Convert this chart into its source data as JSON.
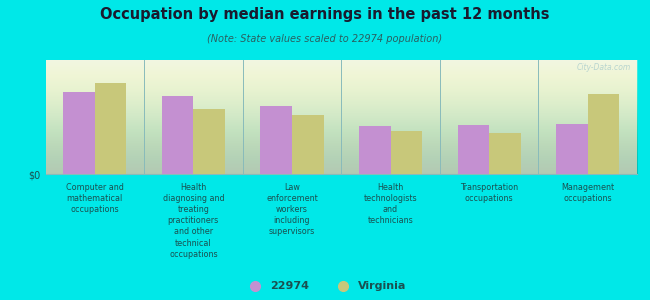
{
  "title": "Occupation by median earnings in the past 12 months",
  "subtitle": "(Note: State values scaled to 22974 population)",
  "background_color": "#00e8e8",
  "plot_bg_top": "#f0f4e0",
  "plot_bg_bottom": "#d8f0d8",
  "categories": [
    "Computer and\nmathematical\noccupations",
    "Health\ndiagnosing and\ntreating\npractitioners\nand other\ntechnical\noccupations",
    "Law\nenforcement\nworkers\nincluding\nsupervisors",
    "Health\ntechnologists\nand\ntechnicians",
    "Transportation\noccupations",
    "Management\noccupations"
  ],
  "values_22974": [
    72,
    68,
    60,
    42,
    43,
    44
  ],
  "values_virginia": [
    80,
    57,
    52,
    38,
    36,
    70
  ],
  "color_22974": "#c490d1",
  "color_virginia": "#c8c87a",
  "ylabel": "$0",
  "bar_width": 0.32,
  "ylim": [
    0,
    100
  ],
  "legend_label_1": "22974",
  "legend_label_2": "Virginia",
  "watermark": "City-Data.com",
  "title_color": "#1a1a2e",
  "subtitle_color": "#2a6060",
  "label_color": "#1a5050"
}
